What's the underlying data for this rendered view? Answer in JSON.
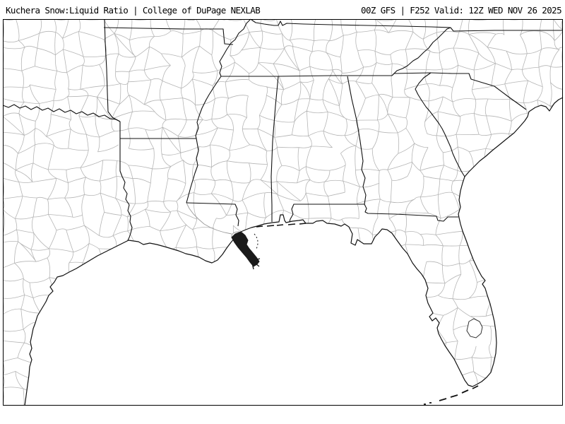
{
  "header": {
    "left_title": "Kuchera Snow:Liquid Ratio | College of DuPage NEXLAB",
    "right_title": "00Z GFS | F252 Valid: 12Z WED NOV 26 2025"
  },
  "map": {
    "region_name": "southeastern-united-states-county-map",
    "colors": {
      "background": "#ffffff",
      "land_fill": "#ffffff",
      "water_fill": "#ffffff",
      "county_line": "#b5b5b5",
      "state_line": "#111111",
      "coast_line": "#111111",
      "river_line": "#9a9a9a",
      "delta_fill": "#1a1a1a",
      "frame": "#000000",
      "header_text": "#000000"
    }
  }
}
